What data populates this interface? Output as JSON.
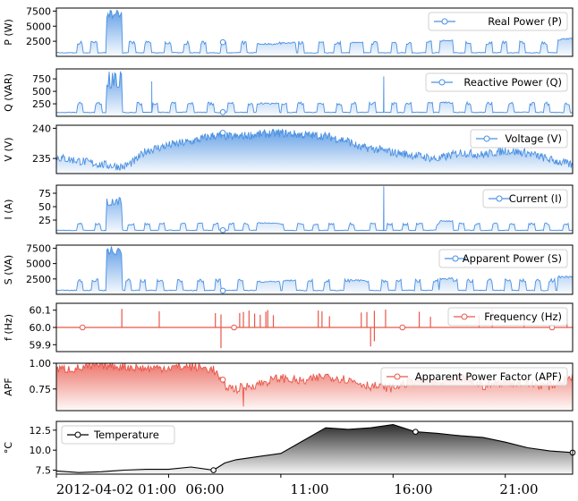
{
  "colors": {
    "blue": "#4a90e2",
    "red": "#e8574a",
    "black": "#000000"
  },
  "chart_data": {
    "type": "line",
    "x_axis": {
      "start_label": "2012-04-02 01:00",
      "tick_labels": [
        "2012-04-02 01:00",
        "06:00",
        "11:00",
        "16:00",
        "21:00"
      ],
      "tick_times": [
        "01:00",
        "06:00",
        "11:00",
        "16:00",
        "21:00"
      ],
      "range": [
        "01:00",
        "24:00"
      ]
    },
    "panels": [
      {
        "key": "p",
        "ylabel": "P (W)",
        "legend": "Real Power (P)",
        "color": "blue",
        "fill": "gradient",
        "ylim": [
          0,
          8000
        ],
        "yticks": [
          2500,
          5000,
          7500
        ],
        "ytick_labels": [
          "2500",
          "5000",
          "7500"
        ],
        "marker_time": "08:25",
        "baseline": 600,
        "mid": 2300,
        "bursts": [
          {
            "t0": "03:15",
            "t1": "03:55",
            "level": 6900,
            "peak": 7700
          },
          {
            "t0": "09:55",
            "t1": "10:55",
            "level": 2100
          },
          {
            "t0": "11:05",
            "t1": "11:40",
            "level": 2300
          },
          {
            "t0": "14:05",
            "t1": "14:40",
            "level": 2300
          },
          {
            "t0": "18:05",
            "t1": "18:40",
            "level": 2600
          },
          {
            "t0": "23:20",
            "t1": "24:00",
            "level": 2900
          }
        ]
      },
      {
        "key": "q",
        "ylabel": "Q (VAR)",
        "legend": "Reactive Power (Q)",
        "color": "blue",
        "fill": "gradient",
        "ylim": [
          0,
          950
        ],
        "yticks": [
          250,
          500,
          750
        ],
        "ytick_labels": [
          "250",
          "500",
          "750"
        ],
        "marker_time": "08:25",
        "baseline": 80,
        "mid": 260,
        "bursts": [
          {
            "t0": "03:15",
            "t1": "03:55",
            "level": 600,
            "peak": 900
          },
          {
            "t0": "09:55",
            "t1": "10:55",
            "level": 260
          },
          {
            "t0": "18:05",
            "t1": "18:40",
            "level": 280
          }
        ],
        "spikes": [
          {
            "t": "05:15",
            "value": 700
          },
          {
            "t": "15:35",
            "value": 800
          }
        ]
      },
      {
        "key": "v",
        "ylabel": "V (V)",
        "legend": "Voltage (V)",
        "color": "blue",
        "fill": "gradient",
        "ylim": [
          232.5,
          240.5
        ],
        "yticks": [
          235,
          240
        ],
        "ytick_labels": [
          "235",
          "240"
        ],
        "marker_time": "08:25",
        "profile": [
          [
            "01:00",
            235.2
          ],
          [
            "02:00",
            234.6
          ],
          [
            "03:00",
            234.0
          ],
          [
            "04:00",
            233.6
          ],
          [
            "04:30",
            234.6
          ],
          [
            "05:00",
            236.3
          ],
          [
            "06:00",
            237.2
          ],
          [
            "07:00",
            237.8
          ],
          [
            "08:00",
            238.8
          ],
          [
            "09:00",
            238.6
          ],
          [
            "10:00",
            239.0
          ],
          [
            "11:00",
            239.2
          ],
          [
            "12:00",
            238.9
          ],
          [
            "13:00",
            238.7
          ],
          [
            "14:00",
            237.9
          ],
          [
            "14:30",
            236.8
          ],
          [
            "15:00",
            236.7
          ],
          [
            "16:00",
            236.0
          ],
          [
            "17:00",
            235.5
          ],
          [
            "18:00",
            234.9
          ],
          [
            "19:00",
            236.0
          ],
          [
            "20:00",
            235.6
          ],
          [
            "21:00",
            236.3
          ],
          [
            "22:00",
            235.9
          ],
          [
            "23:00",
            234.8
          ],
          [
            "24:00",
            233.9
          ]
        ]
      },
      {
        "key": "i",
        "ylabel": "I (A)",
        "legend": "Current (I)",
        "color": "blue",
        "fill": "gradient",
        "ylim": [
          0,
          90
        ],
        "yticks": [
          25,
          50,
          75
        ],
        "ytick_labels": [
          "25",
          "50",
          "75"
        ],
        "marker_time": "08:25",
        "baseline": 6,
        "mid": 18,
        "bursts": [
          {
            "t0": "03:15",
            "t1": "03:55",
            "level": 55,
            "peak": 68
          },
          {
            "t0": "09:55",
            "t1": "10:55",
            "level": 20
          },
          {
            "t0": "18:05",
            "t1": "18:40",
            "level": 24
          }
        ],
        "spikes": [
          {
            "t": "15:35",
            "value": 88
          }
        ]
      },
      {
        "key": "s",
        "ylabel": "S (VA)",
        "legend": "Apparent Power (S)",
        "color": "blue",
        "fill": "gradient",
        "ylim": [
          0,
          8000
        ],
        "yticks": [
          2500,
          5000,
          7500
        ],
        "ytick_labels": [
          "2500",
          "5000",
          "7500"
        ],
        "marker_time": "08:25",
        "baseline": 650,
        "mid": 2300,
        "bursts": [
          {
            "t0": "03:15",
            "t1": "03:55",
            "level": 6900,
            "peak": 7800
          },
          {
            "t0": "09:55",
            "t1": "10:55",
            "level": 2100
          },
          {
            "t0": "11:05",
            "t1": "11:40",
            "level": 2300
          },
          {
            "t0": "14:05",
            "t1": "14:40",
            "level": 2300
          },
          {
            "t0": "18:05",
            "t1": "18:40",
            "level": 2600
          },
          {
            "t0": "23:20",
            "t1": "24:00",
            "level": 2900
          }
        ]
      },
      {
        "key": "f",
        "ylabel": "f (Hz)",
        "legend": "Frequency (Hz)",
        "color": "red",
        "fill": "none",
        "ylim": [
          59.86,
          60.14
        ],
        "yticks": [
          59.9,
          60.0,
          60.1
        ],
        "ytick_labels": [
          "59.9",
          "60.0",
          "60.1"
        ],
        "base_value": 60.0,
        "markers_times": [
          "02:10",
          "08:55",
          "16:25",
          "23:05"
        ],
        "up_spikes": [
          "03:55",
          "05:35",
          "08:05",
          "08:20",
          "09:10",
          "09:20",
          "09:35",
          "09:50",
          "10:05",
          "10:20",
          "10:25",
          "10:40",
          "12:40",
          "12:50",
          "13:10",
          "14:35",
          "14:50",
          "15:10",
          "15:40",
          "17:10",
          "17:40",
          "19:50",
          "20:25",
          "21:50",
          "23:45"
        ],
        "down_spikes": [
          {
            "t": "08:20",
            "value": 59.88
          },
          {
            "t": "15:00",
            "value": 59.89
          },
          {
            "t": "15:10",
            "value": 59.92
          }
        ]
      },
      {
        "key": "apf",
        "ylabel": "APF",
        "legend": "Apparent Power Factor (APF)",
        "color": "red",
        "fill": "gradient",
        "ylim": [
          0.54,
          1.0
        ],
        "yticks": [
          0.75,
          1.0
        ],
        "ytick_labels": [
          "0.75",
          "1.00"
        ],
        "marker_time": "08:25",
        "profile": [
          [
            "01:00",
            0.94
          ],
          [
            "02:00",
            0.95
          ],
          [
            "03:00",
            0.98
          ],
          [
            "04:00",
            0.97
          ],
          [
            "05:00",
            0.95
          ],
          [
            "06:00",
            0.96
          ],
          [
            "07:00",
            0.97
          ],
          [
            "08:00",
            0.94
          ],
          [
            "08:30",
            0.78
          ],
          [
            "09:00",
            0.75
          ],
          [
            "10:00",
            0.8
          ],
          [
            "11:00",
            0.86
          ],
          [
            "12:00",
            0.82
          ],
          [
            "13:00",
            0.88
          ],
          [
            "14:00",
            0.84
          ],
          [
            "15:00",
            0.78
          ],
          [
            "16:00",
            0.76
          ],
          [
            "17:00",
            0.84
          ],
          [
            "18:00",
            0.8
          ],
          [
            "19:00",
            0.86
          ],
          [
            "20:00",
            0.78
          ],
          [
            "21:00",
            0.82
          ],
          [
            "22:00",
            0.8
          ],
          [
            "23:00",
            0.78
          ],
          [
            "24:00",
            0.86
          ]
        ],
        "dip": {
          "t": "09:20",
          "value": 0.58
        }
      },
      {
        "key": "t",
        "ylabel": "°C",
        "legend": "Temperature",
        "color": "black",
        "fill": "gradient-dark",
        "ylim": [
          7.0,
          13.6
        ],
        "yticks": [
          7.5,
          10.0,
          12.5
        ],
        "ytick_labels": [
          "7.5",
          "10.0",
          "12.5"
        ],
        "markers_times": [
          "08:00",
          "17:00",
          "24:00"
        ],
        "points": [
          [
            "01:00",
            7.4
          ],
          [
            "02:00",
            7.2
          ],
          [
            "03:00",
            7.3
          ],
          [
            "04:00",
            7.5
          ],
          [
            "05:00",
            7.6
          ],
          [
            "06:00",
            7.6
          ],
          [
            "07:00",
            7.9
          ],
          [
            "08:00",
            7.5
          ],
          [
            "08:30",
            8.4
          ],
          [
            "09:00",
            8.8
          ],
          [
            "10:00",
            9.2
          ],
          [
            "11:00",
            9.6
          ],
          [
            "12:00",
            11.2
          ],
          [
            "13:00",
            12.8
          ],
          [
            "14:00",
            12.6
          ],
          [
            "15:00",
            12.8
          ],
          [
            "16:00",
            13.2
          ],
          [
            "17:00",
            12.3
          ],
          [
            "18:00",
            12.1
          ],
          [
            "19:00",
            11.8
          ],
          [
            "20:00",
            11.6
          ],
          [
            "21:00",
            11.0
          ],
          [
            "22:00",
            10.3
          ],
          [
            "23:00",
            9.9
          ],
          [
            "24:00",
            9.7
          ]
        ]
      }
    ]
  }
}
